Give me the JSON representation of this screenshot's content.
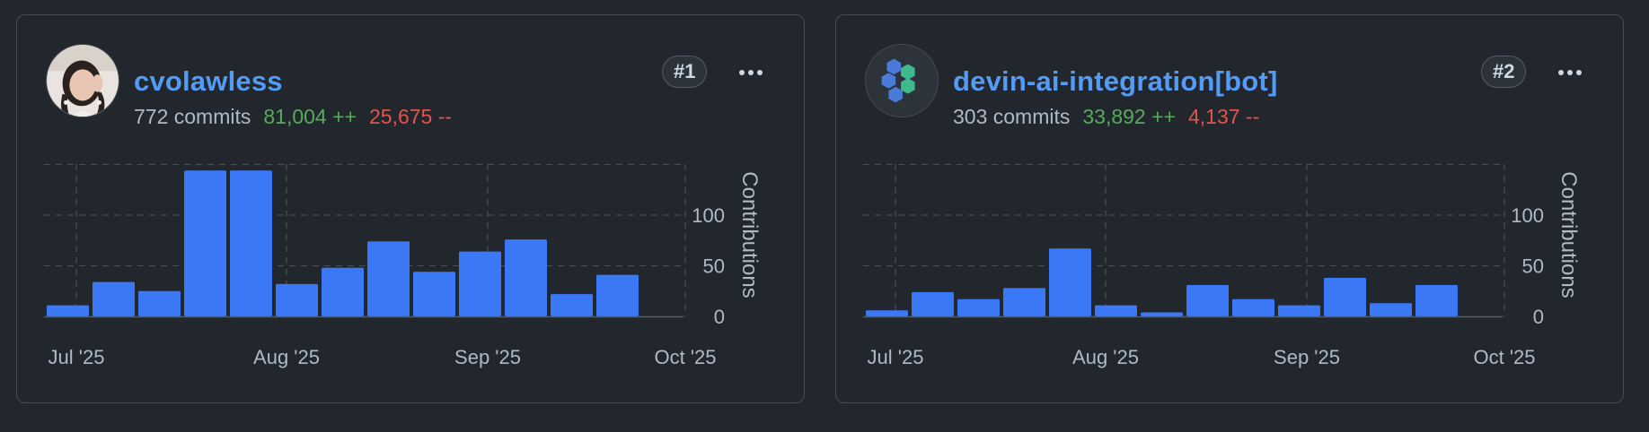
{
  "cards": [
    {
      "username": "cvolawless",
      "commits": "772 commits",
      "additions": "81,004 ++",
      "deletions": "25,675 --",
      "rank": "#1",
      "avatar_icon": "user-photo-avatar",
      "chart_data": {
        "type": "bar",
        "ylabel": "Contributions",
        "y_ticks": [
          0,
          50,
          100
        ],
        "ylim": [
          0,
          150
        ],
        "x_ticks": [
          "Jul '25",
          "Aug '25",
          "Sep '25",
          "Oct '25"
        ],
        "grid": true,
        "bar_color": "#3b78f5",
        "values": [
          11,
          34,
          25,
          144,
          144,
          32,
          48,
          74,
          44,
          64,
          76,
          22,
          41
        ]
      }
    },
    {
      "username": "devin-ai-integration[bot]",
      "commits": "303 commits",
      "additions": "33,892 ++",
      "deletions": "4,137 --",
      "rank": "#2",
      "avatar_icon": "hexagon-logo-avatar",
      "chart_data": {
        "type": "bar",
        "ylabel": "Contributions",
        "y_ticks": [
          0,
          50,
          100
        ],
        "ylim": [
          0,
          150
        ],
        "x_ticks": [
          "Jul '25",
          "Aug '25",
          "Sep '25",
          "Oct '25"
        ],
        "grid": true,
        "bar_color": "#3b78f5",
        "values": [
          6,
          24,
          17,
          28,
          67,
          11,
          4,
          31,
          17,
          11,
          38,
          13,
          31
        ]
      }
    }
  ]
}
